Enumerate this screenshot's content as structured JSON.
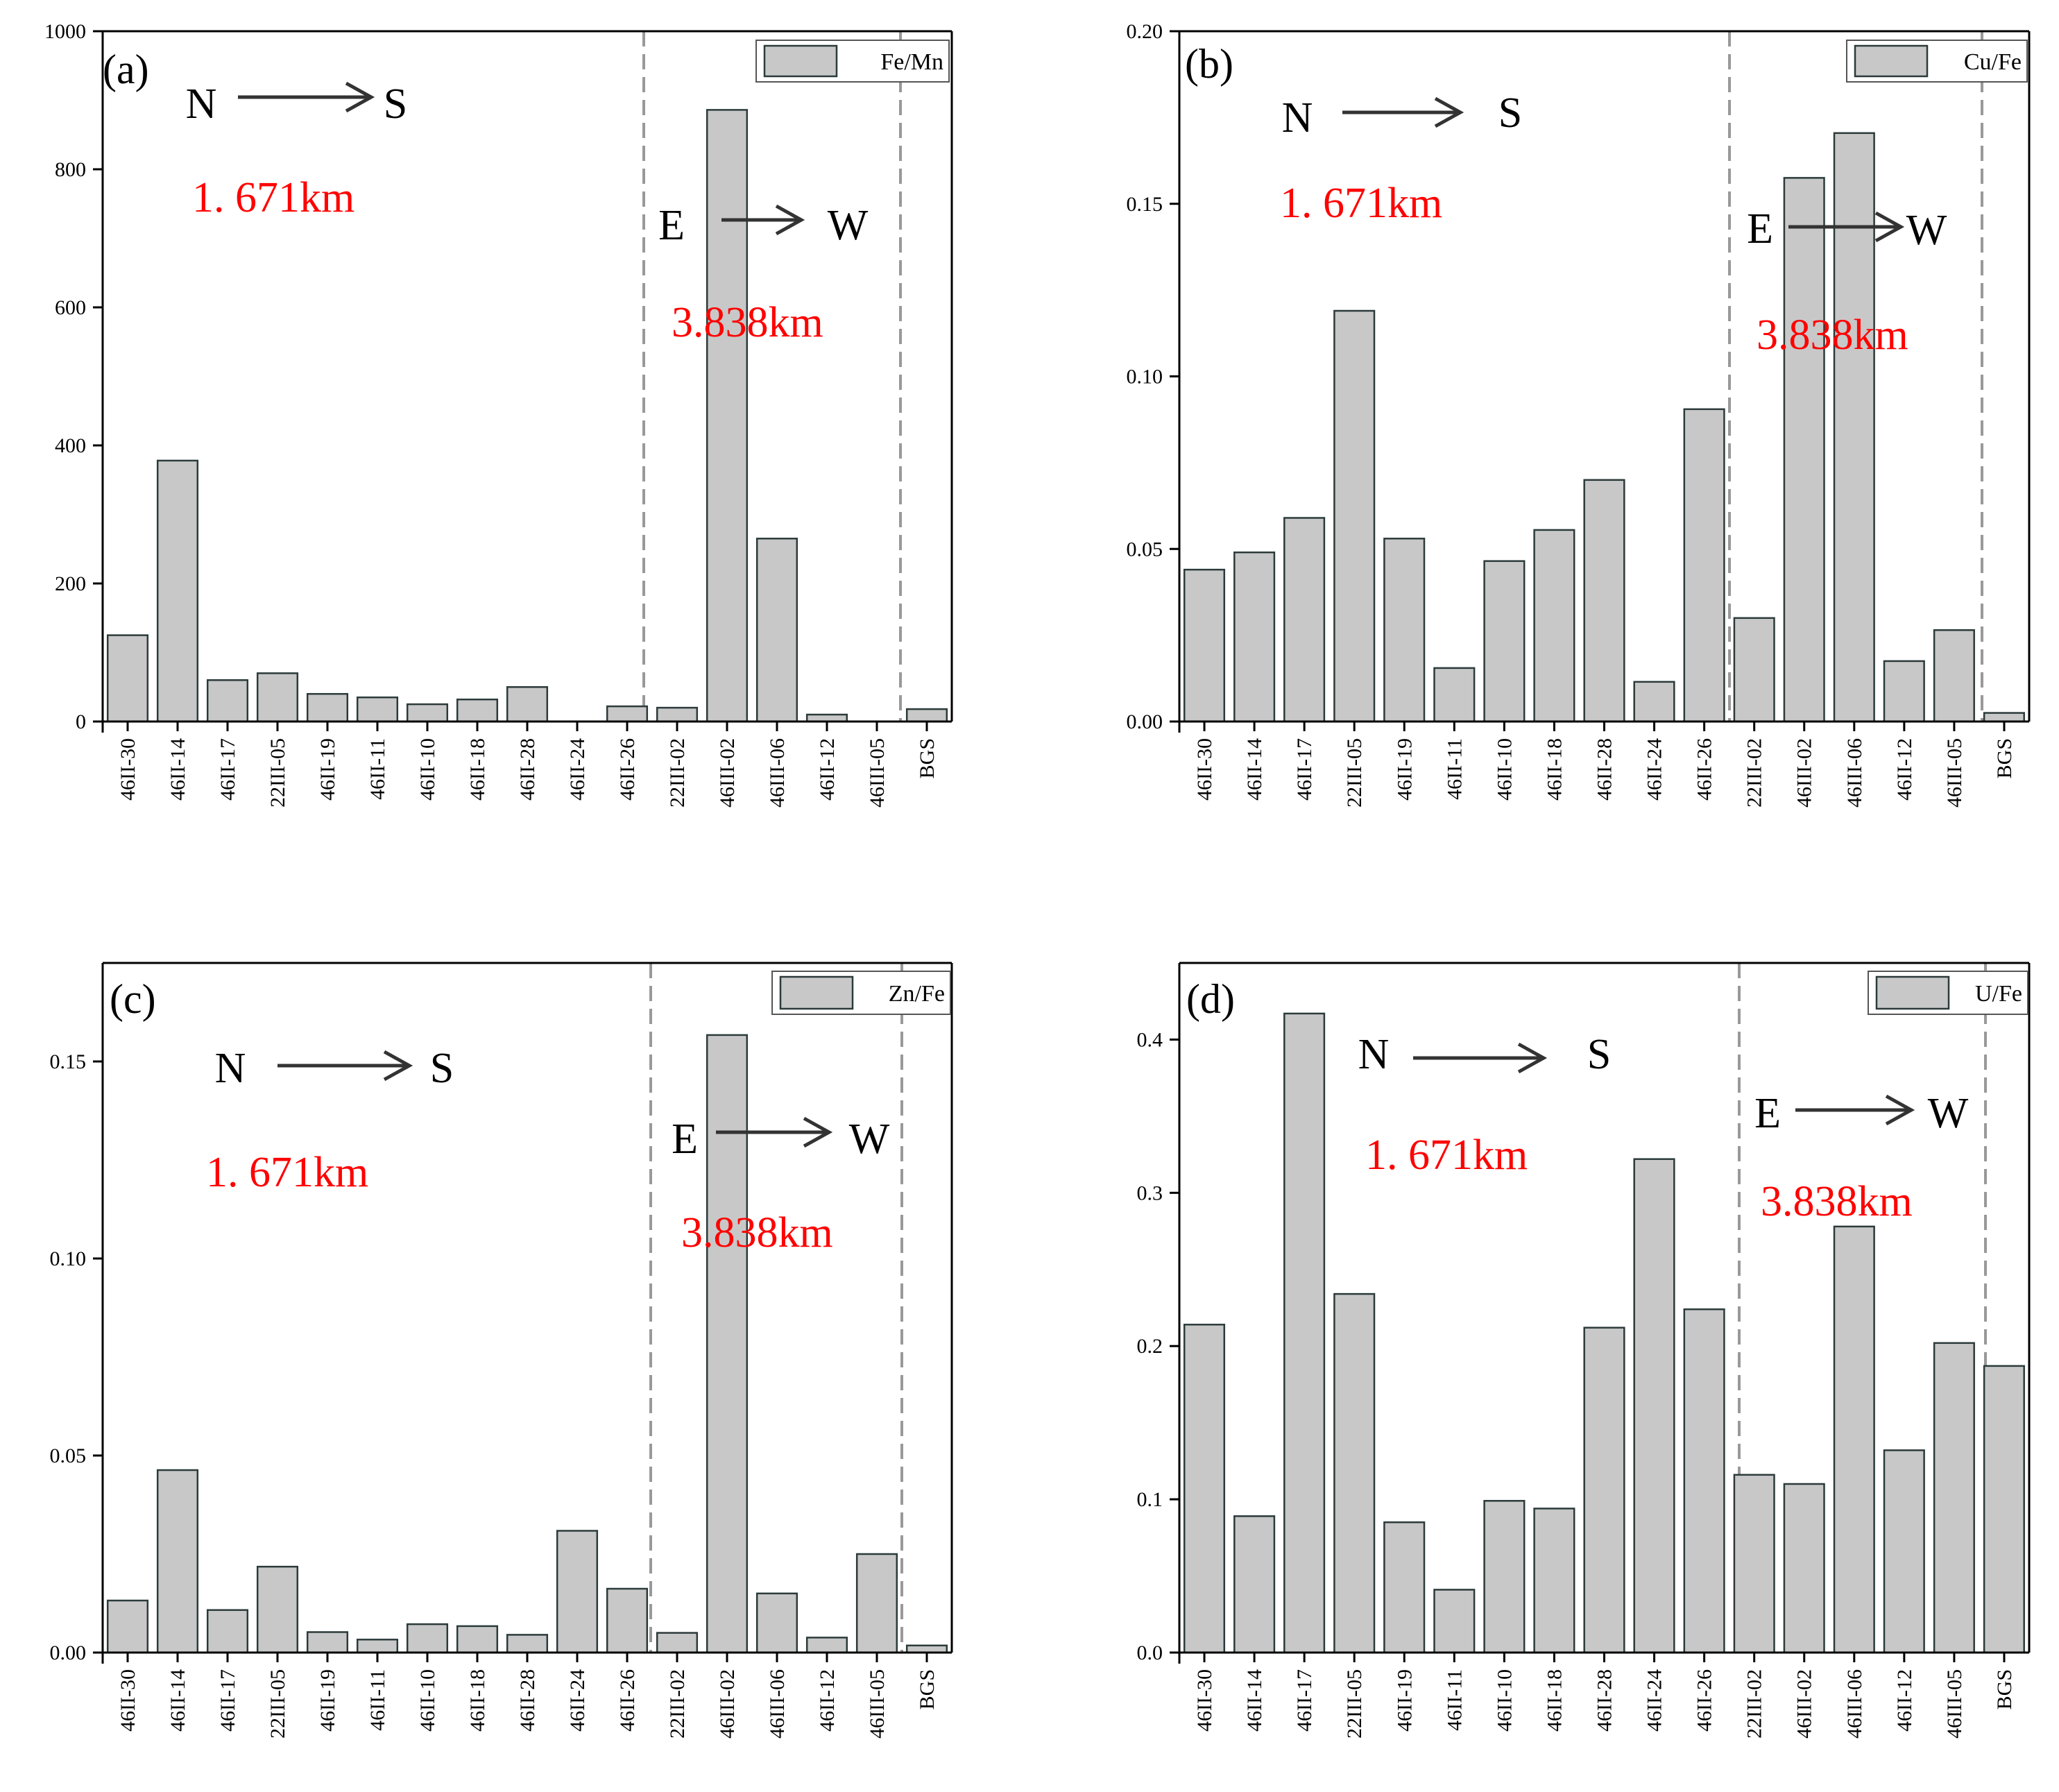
{
  "chart_data": [
    {
      "type": "bar",
      "panel_label": "(a)",
      "legend": "Fe/Mn",
      "categories": [
        "46II-30",
        "46II-14",
        "46II-17",
        "22III-05",
        "46II-19",
        "46II-11",
        "46II-10",
        "46II-18",
        "46II-28",
        "46II-24",
        "46II-26",
        "22III-02",
        "46III-02",
        "46III-06",
        "46II-12",
        "46III-05",
        "BGS"
      ],
      "values": [
        125,
        378,
        60,
        70,
        40,
        35,
        25,
        32,
        50,
        0,
        22,
        20,
        886,
        265,
        10,
        0,
        18
      ],
      "ylim": [
        0,
        1000
      ],
      "yticks": [
        "0",
        "200",
        "400",
        "600",
        "800",
        "1000"
      ],
      "ytick_values": [
        0,
        200,
        400,
        600,
        800,
        1000
      ],
      "annotations": {
        "ns_n": "N",
        "ns_s": "S",
        "ns_distance": "1. 671km",
        "ew_e": "E",
        "ew_w": "W",
        "ew_distance": "3.838km"
      }
    },
    {
      "type": "bar",
      "panel_label": "(b)",
      "legend": "Cu/Fe",
      "categories": [
        "46II-30",
        "46II-14",
        "46II-17",
        "22III-05",
        "46II-19",
        "46II-11",
        "46II-10",
        "46II-18",
        "46II-28",
        "46II-24",
        "46II-26",
        "22III-02",
        "46III-02",
        "46III-06",
        "46II-12",
        "46III-05",
        "BGS"
      ],
      "values": [
        0.044,
        0.049,
        0.059,
        0.119,
        0.053,
        0.0155,
        0.0465,
        0.0555,
        0.07,
        0.0115,
        0.0905,
        0.03,
        0.1575,
        0.1705,
        0.0175,
        0.0265,
        0.0025
      ],
      "ylim": [
        0,
        0.2
      ],
      "yticks": [
        "0.00",
        "0.05",
        "0.10",
        "0.15",
        "0.20"
      ],
      "ytick_values": [
        0,
        0.05,
        0.1,
        0.15,
        0.2
      ],
      "annotations": {
        "ns_n": "N",
        "ns_s": "S",
        "ns_distance": "1. 671km",
        "ew_e": "E",
        "ew_w": "W",
        "ew_distance": "3.838km"
      }
    },
    {
      "type": "bar",
      "panel_label": "(c)",
      "legend": "Zn/Fe",
      "categories": [
        "46II-30",
        "46II-14",
        "46II-17",
        "22III-05",
        "46II-19",
        "46II-11",
        "46II-10",
        "46II-18",
        "46II-28",
        "46II-24",
        "46II-26",
        "22III-02",
        "46III-02",
        "46III-06",
        "46II-12",
        "46III-05",
        "BGS"
      ],
      "values": [
        0.0132,
        0.0463,
        0.0108,
        0.0218,
        0.0052,
        0.0033,
        0.0072,
        0.0067,
        0.0045,
        0.0309,
        0.0162,
        0.005,
        0.1567,
        0.015,
        0.0038,
        0.025,
        0.0018
      ],
      "ylim": [
        0,
        0.175
      ],
      "yticks": [
        "0.00",
        "0.05",
        "0.10",
        "0.15"
      ],
      "ytick_values": [
        0,
        0.05,
        0.1,
        0.15
      ],
      "annotations": {
        "ns_n": "N",
        "ns_s": "S",
        "ns_distance": "1. 671km",
        "ew_e": "E",
        "ew_w": "W",
        "ew_distance": "3.838km"
      }
    },
    {
      "type": "bar",
      "panel_label": "(d)",
      "legend": "U/Fe",
      "categories": [
        "46II-30",
        "46II-14",
        "46II-17",
        "22III-05",
        "46II-19",
        "46II-11",
        "46II-10",
        "46II-18",
        "46II-28",
        "46II-24",
        "46II-26",
        "22III-02",
        "46III-02",
        "46III-06",
        "46II-12",
        "46III-05",
        "BGS"
      ],
      "values": [
        0.214,
        0.089,
        0.417,
        0.234,
        0.085,
        0.041,
        0.099,
        0.094,
        0.212,
        0.322,
        0.224,
        0.116,
        0.11,
        0.278,
        0.132,
        0.202,
        0.187
      ],
      "ylim": [
        0,
        0.45
      ],
      "yticks": [
        "0.0",
        "0.1",
        "0.2",
        "0.3",
        "0.4"
      ],
      "ytick_values": [
        0,
        0.1,
        0.2,
        0.3,
        0.4
      ],
      "annotations": {
        "ns_n": "N",
        "ns_s": "S",
        "ns_distance": "1. 671km",
        "ew_e": "E",
        "ew_w": "W",
        "ew_distance": "3.838km"
      }
    }
  ],
  "colors": {
    "bar_fill": "#c8c8c8",
    "bar_stroke": "#2c3a3a",
    "axis": "#000000",
    "divider": "#999999",
    "distance_text": "#ff0000",
    "arrow": "#333333"
  }
}
